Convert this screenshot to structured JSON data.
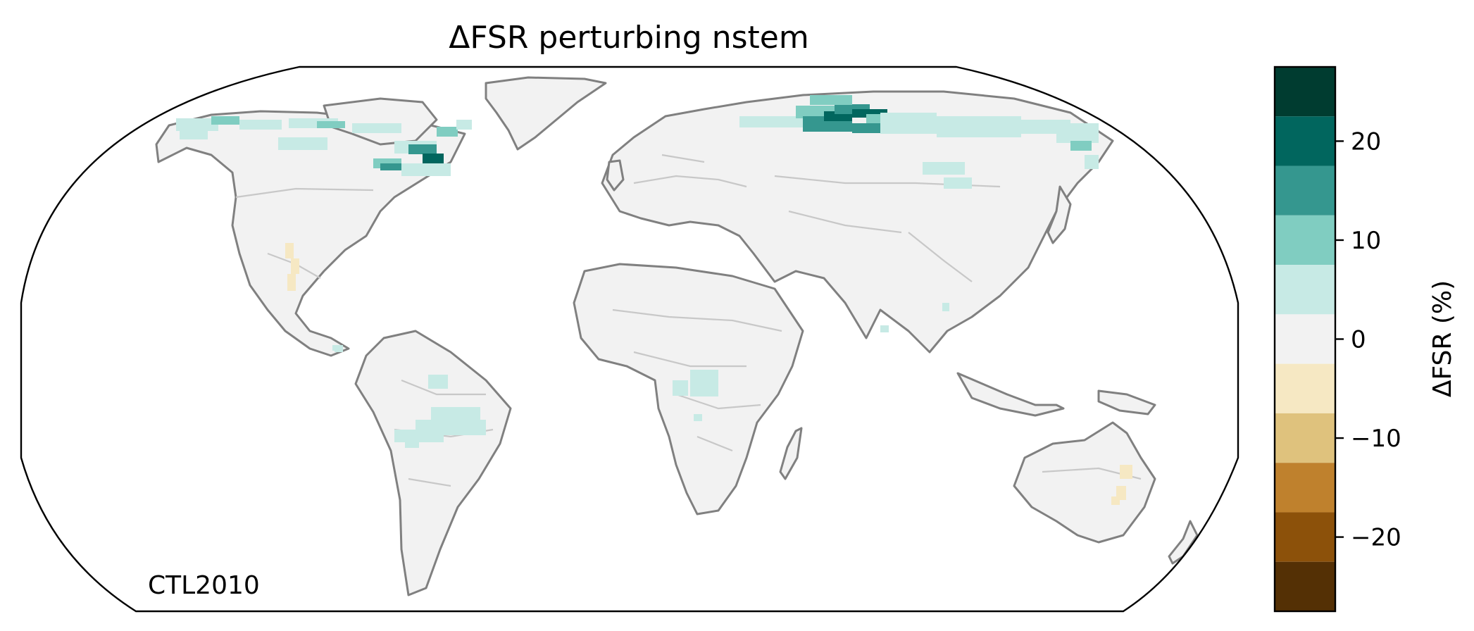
{
  "title": "ΔFSR perturbing nstem",
  "annotation": "CTL2010",
  "colorbar": {
    "label": "ΔFSR (%)",
    "min": -27.5,
    "max": 27.5,
    "step": 5,
    "tick_labels": [
      "20",
      "10",
      "0",
      "−10",
      "−20"
    ],
    "tick_values": [
      20,
      10,
      0,
      -10,
      -20
    ],
    "colors": [
      "#003c30",
      "#01665e",
      "#35978f",
      "#80cdc1",
      "#c7eae5",
      "#f2f2f2",
      "#f6e8c3",
      "#dfc27d",
      "#bf812d",
      "#8c510a",
      "#543005"
    ]
  },
  "map": {
    "projection": "Robinson",
    "land_color": "#f2f2f2",
    "coastline_color": "#808080",
    "border_color": "#c8c8c8"
  }
}
